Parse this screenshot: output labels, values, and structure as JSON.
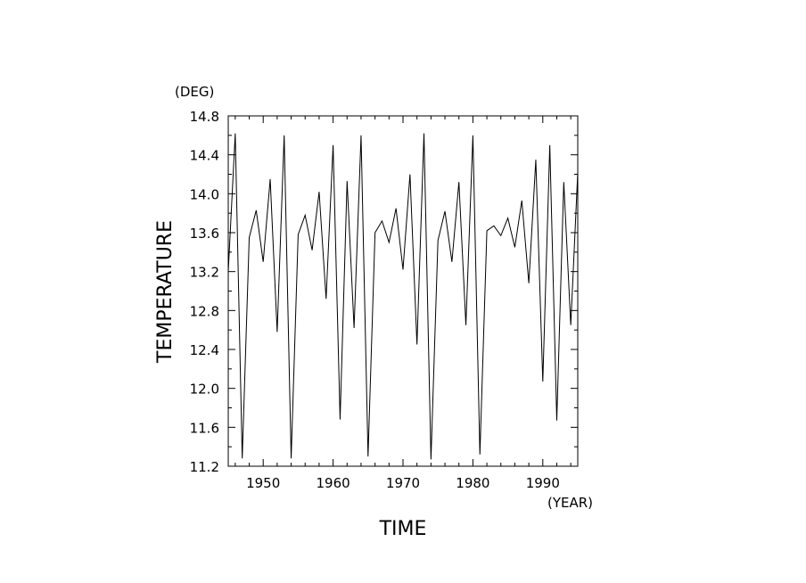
{
  "chart_data": {
    "type": "line",
    "xlabel": "TIME",
    "ylabel": "TEMPERATURE",
    "xunit": "(YEAR)",
    "yunit": "(DEG)",
    "xlim": [
      1945,
      1995
    ],
    "ylim": [
      11.2,
      14.8
    ],
    "x_ticks": [
      1950,
      1960,
      1970,
      1980,
      1990
    ],
    "y_ticks": [
      11.2,
      11.6,
      12.0,
      12.4,
      12.8,
      13.2,
      13.6,
      14.0,
      14.4,
      14.8
    ],
    "y_tick_labels": [
      "11.2",
      "11.6",
      "12.0",
      "12.4",
      "12.8",
      "13.2",
      "13.6",
      "14.0",
      "14.4",
      "14.8"
    ],
    "grid": false,
    "line_color": "#000000",
    "series": [
      {
        "x": [
          1945,
          1946,
          1947,
          1948,
          1949,
          1950,
          1951,
          1952,
          1953,
          1954,
          1955,
          1956,
          1957,
          1958,
          1959,
          1960,
          1961,
          1962,
          1963,
          1964,
          1965,
          1966,
          1967,
          1968,
          1969,
          1970,
          1971,
          1972,
          1973,
          1974,
          1975,
          1976,
          1977,
          1978,
          1979,
          1980,
          1981,
          1982,
          1983,
          1984,
          1985,
          1986,
          1987,
          1988,
          1989,
          1990,
          1991,
          1992,
          1993,
          1994,
          1995
        ],
        "values": [
          13.2,
          14.62,
          11.28,
          13.55,
          13.83,
          13.3,
          14.15,
          12.58,
          14.6,
          11.28,
          13.58,
          13.78,
          13.42,
          14.02,
          12.92,
          14.5,
          11.68,
          14.13,
          12.62,
          14.6,
          11.3,
          13.6,
          13.72,
          13.5,
          13.85,
          13.22,
          14.2,
          12.45,
          14.62,
          11.27,
          13.52,
          13.82,
          13.3,
          14.12,
          12.65,
          14.6,
          11.32,
          13.62,
          13.67,
          13.57,
          13.75,
          13.45,
          13.93,
          13.08,
          14.35,
          12.07,
          14.5,
          11.67,
          14.12,
          12.65,
          14.22
        ]
      }
    ]
  }
}
